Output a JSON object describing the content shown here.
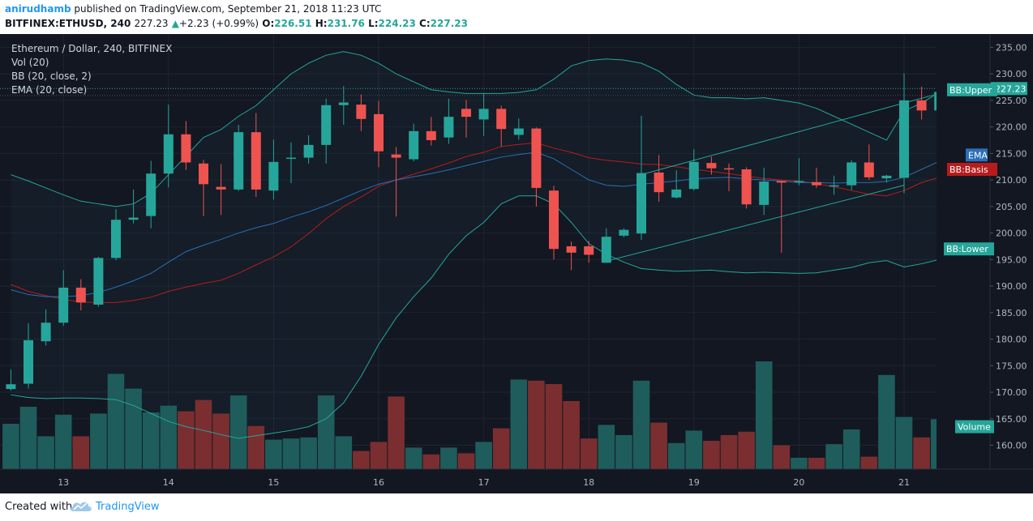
{
  "header": {
    "author": "anirudhamb",
    "published_text": "published on TradingView.com, September 21, 2018 11:23 UTC",
    "symbol_line": "BITFINEX:ETHUSD, 240",
    "last_price": "227.23",
    "change_arrow": "▲",
    "change": "+2.23 (+0.99%)",
    "o_label": "O:",
    "o_value": "226.51",
    "h_label": "H:",
    "h_value": "231.76",
    "l_label": "L:",
    "l_value": "224.23",
    "c_label": "C:",
    "c_value": "227.23"
  },
  "footer": {
    "created_with": "Created with",
    "brand": "TradingView"
  },
  "colors": {
    "background": "#131722",
    "up": "#26a69a",
    "down": "#ef5350",
    "vol_up": "#1e5d5b",
    "vol_down": "#7b2e30",
    "bb_line": "#26a69a",
    "bb_basis": "#b71c1c",
    "ema": "#2a6fb7",
    "current_price": "#26a69a"
  },
  "chart_data": {
    "type": "candlestick",
    "title": "Ethereum / Dollar, 240, BITFINEX",
    "indicators": [
      "Vol (20)",
      "BB (20, close, 2)",
      "EMA (20, close)"
    ],
    "ylim": [
      155.5,
      237.5
    ],
    "y_ticks": [
      "235.00",
      "230.00",
      "225.00",
      "220.00",
      "215.00",
      "210.00",
      "205.00",
      "200.00",
      "195.00",
      "190.00",
      "185.00",
      "180.00",
      "175.00",
      "170.00",
      "165.00",
      "160.00"
    ],
    "x_ticks": [
      {
        "label": "13",
        "index": 3
      },
      {
        "label": "14",
        "index": 9
      },
      {
        "label": "15",
        "index": 15
      },
      {
        "label": "16",
        "index": 21
      },
      {
        "label": "17",
        "index": 27
      },
      {
        "label": "18",
        "index": 33
      },
      {
        "label": "19",
        "index": 39
      },
      {
        "label": "20",
        "index": 45
      },
      {
        "label": "21",
        "index": 51
      }
    ],
    "current_price": 227.23,
    "ohlc": [
      [
        170.6,
        174.3,
        170.3,
        171.5
      ],
      [
        171.6,
        183.0,
        170.7,
        179.8
      ],
      [
        179.6,
        185.6,
        178.8,
        183.1
      ],
      [
        183.1,
        193.0,
        182.5,
        189.7
      ],
      [
        189.7,
        191.3,
        185.4,
        186.9
      ],
      [
        186.5,
        195.5,
        186.1,
        195.3
      ],
      [
        195.3,
        204.5,
        194.9,
        202.5
      ],
      [
        202.5,
        208.2,
        201.8,
        202.9
      ],
      [
        203.2,
        213.6,
        200.9,
        211.2
      ],
      [
        211.2,
        224.2,
        208.6,
        218.6
      ],
      [
        218.6,
        221.1,
        211.9,
        213.3
      ],
      [
        213.1,
        213.8,
        203.2,
        209.2
      ],
      [
        208.7,
        213.0,
        203.4,
        208.2
      ],
      [
        208.2,
        220.4,
        207.9,
        219.0
      ],
      [
        219.0,
        222.6,
        206.8,
        208.2
      ],
      [
        208.0,
        217.6,
        206.3,
        213.4
      ],
      [
        214.2,
        217.1,
        209.4,
        214.2
      ],
      [
        214.2,
        218.4,
        213.1,
        216.6
      ],
      [
        216.6,
        225.3,
        213.1,
        224.1
      ],
      [
        224.1,
        227.7,
        220.4,
        224.6
      ],
      [
        224.2,
        226.1,
        219.2,
        221.5
      ],
      [
        222.4,
        224.9,
        212.4,
        215.4
      ],
      [
        214.8,
        216.2,
        203.1,
        214.2
      ],
      [
        213.9,
        220.6,
        213.5,
        219.2
      ],
      [
        219.2,
        221.9,
        216.5,
        217.5
      ],
      [
        218.0,
        225.3,
        216.8,
        221.9
      ],
      [
        223.4,
        225.1,
        218.0,
        221.9
      ],
      [
        221.4,
        226.3,
        218.3,
        223.4
      ],
      [
        223.4,
        224.0,
        216.3,
        219.6
      ],
      [
        218.5,
        221.6,
        217.6,
        219.7
      ],
      [
        219.7,
        219.9,
        205.0,
        208.5
      ],
      [
        208.0,
        208.9,
        195.0,
        197.0
      ],
      [
        197.5,
        198.4,
        193.0,
        196.3
      ],
      [
        197.5,
        198.5,
        194.4,
        195.9
      ],
      [
        194.4,
        200.9,
        194.4,
        199.3
      ],
      [
        199.5,
        200.9,
        199.2,
        200.6
      ],
      [
        199.9,
        222.1,
        198.7,
        211.3
      ],
      [
        211.4,
        214.7,
        205.9,
        207.7
      ],
      [
        206.7,
        211.8,
        206.5,
        208.2
      ],
      [
        208.3,
        215.8,
        208.0,
        213.4
      ],
      [
        213.2,
        214.4,
        211.0,
        212.2
      ],
      [
        212.2,
        213.1,
        207.9,
        212.0
      ],
      [
        212.0,
        212.4,
        204.6,
        205.4
      ],
      [
        205.3,
        212.3,
        203.4,
        209.7
      ],
      [
        209.8,
        209.8,
        196.3,
        209.5
      ],
      [
        209.6,
        214.1,
        209.0,
        209.8
      ],
      [
        209.6,
        212.3,
        208.5,
        209.0
      ],
      [
        209.0,
        210.8,
        207.2,
        209.0
      ],
      [
        209.0,
        213.7,
        208.1,
        213.3
      ],
      [
        213.3,
        216.7,
        210.0,
        210.5
      ],
      [
        210.3,
        211.0,
        209.5,
        210.8
      ],
      [
        210.4,
        230.1,
        207.5,
        225.0
      ],
      [
        225.0,
        227.6,
        221.4,
        223.1
      ],
      [
        223.1,
        227.8,
        221.8,
        226.6
      ],
      [
        226.5,
        231.8,
        224.2,
        227.2
      ]
    ],
    "volume_rel": [
      0.4,
      0.55,
      0.29,
      0.48,
      0.29,
      0.49,
      0.84,
      0.71,
      0.5,
      0.56,
      0.51,
      0.61,
      0.49,
      0.65,
      0.38,
      0.26,
      0.27,
      0.28,
      0.65,
      0.29,
      0.16,
      0.24,
      0.64,
      0.19,
      0.13,
      0.19,
      0.14,
      0.24,
      0.36,
      0.79,
      0.78,
      0.75,
      0.6,
      0.27,
      0.39,
      0.3,
      0.78,
      0.41,
      0.23,
      0.34,
      0.25,
      0.3,
      0.33,
      0.95,
      0.21,
      0.1,
      0.1,
      0.22,
      0.35,
      0.11,
      0.83,
      0.46,
      0.28,
      0.44,
      0.44
    ],
    "bb_upper": [
      211.0,
      209.8,
      208.5,
      207.2,
      206.0,
      205.5,
      205.0,
      205.5,
      207.5,
      211.0,
      214.5,
      218.0,
      219.5,
      222.0,
      224.0,
      227.0,
      230.0,
      232.0,
      233.5,
      234.2,
      233.5,
      232.0,
      230.0,
      228.5,
      227.0,
      226.6,
      226.3,
      226.3,
      226.3,
      226.5,
      227.0,
      229.0,
      231.5,
      232.5,
      232.8,
      232.6,
      232.0,
      230.5,
      228.0,
      226.0,
      225.5,
      225.5,
      225.3,
      225.5,
      225.0,
      224.5,
      223.5,
      222.0,
      220.5,
      219.0,
      217.5,
      223.0,
      224.5,
      226.5,
      228.0
    ],
    "bb_lower": [
      169.5,
      169.0,
      168.8,
      168.9,
      168.9,
      168.8,
      168.6,
      167.5,
      166.0,
      164.5,
      163.5,
      162.8,
      162.0,
      161.3,
      161.8,
      162.3,
      162.8,
      163.5,
      165.0,
      168.0,
      173.0,
      179.0,
      184.0,
      188.0,
      191.5,
      196.0,
      199.5,
      202.0,
      205.5,
      207.0,
      207.0,
      205.5,
      202.0,
      198.0,
      196.0,
      194.5,
      193.3,
      193.0,
      192.8,
      192.9,
      193.0,
      192.7,
      192.5,
      192.6,
      192.5,
      192.4,
      192.5,
      193.0,
      193.5,
      194.4,
      194.8,
      193.6,
      194.2,
      195.0,
      196.8
    ],
    "bb_basis": [
      190.3,
      189.0,
      188.2,
      187.5,
      187.0,
      186.9,
      186.9,
      187.3,
      187.9,
      189.0,
      189.8,
      190.5,
      191.1,
      192.4,
      194.0,
      195.5,
      197.4,
      199.9,
      202.7,
      205.0,
      206.8,
      208.8,
      210.0,
      211.1,
      212.1,
      213.2,
      214.4,
      215.2,
      216.3,
      216.7,
      217.0,
      216.0,
      215.2,
      214.2,
      213.7,
      213.4,
      213.0,
      212.9,
      212.5,
      212.0,
      211.6,
      211.2,
      210.7,
      210.3,
      210.0,
      209.8,
      209.3,
      208.7,
      208.0,
      207.3,
      207.0,
      208.0,
      209.5,
      210.5,
      212.0
    ],
    "ema": [
      189.3,
      188.4,
      188.0,
      188.0,
      188.2,
      188.8,
      189.8,
      191.0,
      192.4,
      194.5,
      196.5,
      197.7,
      198.8,
      200.0,
      201.0,
      201.8,
      203.0,
      204.0,
      205.2,
      206.6,
      208.0,
      209.2,
      210.0,
      210.6,
      211.2,
      211.9,
      212.7,
      213.5,
      214.3,
      214.8,
      215.2,
      214.0,
      212.0,
      210.0,
      209.0,
      208.8,
      209.2,
      209.5,
      209.8,
      210.2,
      210.4,
      210.5,
      210.2,
      210.0,
      209.8,
      209.5,
      209.5,
      209.4,
      209.5,
      209.5,
      209.7,
      210.5,
      212.0,
      213.5,
      214.8
    ],
    "trendlines": [
      {
        "i0": 34,
        "y0": 194.7,
        "i1": 51,
        "y1": 209.0
      },
      {
        "i0": 36,
        "y0": 211.0,
        "i1": 54,
        "y1": 227.2
      }
    ],
    "tags": {
      "bb_upper": "BB:Upper",
      "ema": "EMA",
      "bb_basis": "BB:Basis",
      "bb_lower": "BB:Lower",
      "volume": "Volume"
    },
    "tag_values": {
      "bb_upper": 227.0,
      "ema": 214.7,
      "bb_basis": 212.0,
      "bb_lower": 197.0,
      "volume": 163.5
    }
  }
}
